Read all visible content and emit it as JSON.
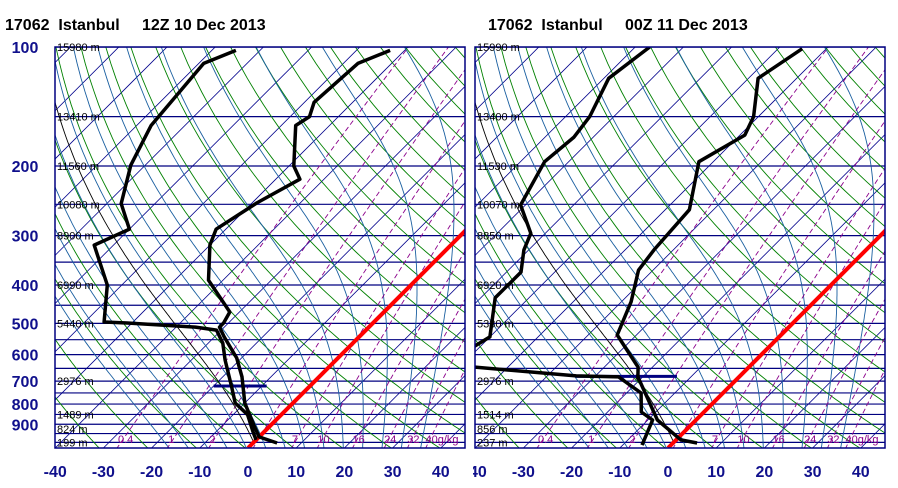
{
  "chart_data": [
    {
      "type": "line",
      "subtype": "skew-T log-P diagram",
      "title": "17062  Istanbul     12Z 10 Dec 2013",
      "station": "17062",
      "ylabel": "Pressure (hPa)",
      "xlabel": "Temperature (°C)",
      "pressure_ticks": [
        "100",
        "200",
        "300",
        "400",
        "500",
        "600",
        "700",
        "800",
        "900"
      ],
      "temperature_ticks": [
        "-40",
        "-30",
        "-20",
        "-10",
        "0",
        "10",
        "20",
        "30",
        "40"
      ],
      "xlim": [
        -40,
        45
      ],
      "ylim": [
        1033,
        100
      ],
      "heights": [
        {
          "p": 100,
          "label": "15980 m"
        },
        {
          "p": 150,
          "label": "13410 m"
        },
        {
          "p": 200,
          "label": "11560 m"
        },
        {
          "p": 250,
          "label": "10080 m"
        },
        {
          "p": 300,
          "label": "8900 m"
        },
        {
          "p": 400,
          "label": "6990 m"
        },
        {
          "p": 500,
          "label": "5440 m"
        },
        {
          "p": 700,
          "label": "2976 m"
        },
        {
          "p": 850,
          "label": "1489 m"
        },
        {
          "p": 925,
          "label": "824 m"
        },
        {
          "p": 1000,
          "label": "199 m"
        }
      ],
      "mixing_ratio_labels": [
        {
          "w": 0.4,
          "label": "0.4"
        },
        {
          "w": 1,
          "label": "1"
        },
        {
          "w": 2,
          "label": "2"
        },
        {
          "w": 7,
          "label": "7"
        },
        {
          "w": 10,
          "label": "10"
        },
        {
          "w": 16,
          "label": "16"
        },
        {
          "w": 24,
          "label": "24"
        },
        {
          "w": 32,
          "label": "32"
        },
        {
          "w": 40,
          "label": "40g/kg"
        }
      ],
      "series": [
        {
          "name": "temperature",
          "color": "#000000",
          "points": [
            [
              102,
              -53
            ],
            [
              110,
              -57
            ],
            [
              138,
              -58
            ],
            [
              150,
              -56
            ],
            [
              158,
              -57
            ],
            [
              200,
              -49
            ],
            [
              216,
              -45
            ],
            [
              248,
              -49
            ],
            [
              289,
              -52
            ],
            [
              317,
              -50
            ],
            [
              389,
              -43
            ],
            [
              468,
              -32
            ],
            [
              499,
              -31
            ],
            [
              511,
              -31
            ],
            [
              541,
              -28
            ],
            [
              612,
              -21
            ],
            [
              683,
              -16
            ],
            [
              795,
              -10
            ],
            [
              914,
              -3
            ],
            [
              969,
              0
            ],
            [
              1004,
              5
            ]
          ]
        },
        {
          "name": "dewpoint",
          "color": "#000000",
          "points": [
            [
              102,
              -85
            ],
            [
              110,
              -89
            ],
            [
              158,
              -87
            ],
            [
              199,
              -83
            ],
            [
              249,
              -77
            ],
            [
              289,
              -70
            ],
            [
              317,
              -74
            ],
            [
              400,
              -63
            ],
            [
              496,
              -56
            ],
            [
              499,
              -51
            ],
            [
              511,
              -36
            ],
            [
              520,
              -31
            ],
            [
              561,
              -27
            ],
            [
              619,
              -23
            ],
            [
              725,
              -16
            ],
            [
              795,
              -12
            ],
            [
              851,
              -7
            ],
            [
              947,
              -2
            ],
            [
              986,
              0
            ]
          ]
        }
      ],
      "marker_segment": {
        "p": 720,
        "t_from": -20,
        "t_to": -9,
        "color": "#000080"
      },
      "highlight_isotherm": {
        "t": 0,
        "color": "#ff0000"
      }
    },
    {
      "type": "line",
      "subtype": "skew-T log-P diagram",
      "title": "17062  Istanbul     00Z 11 Dec 2013",
      "station": "17062",
      "ylabel": "Pressure (hPa)",
      "xlabel": "Temperature (°C)",
      "pressure_ticks": [],
      "temperature_ticks": [
        "-40",
        "-30",
        "-20",
        "-10",
        "0",
        "10",
        "20",
        "30",
        "40"
      ],
      "xlim": [
        -40,
        45
      ],
      "ylim": [
        1033,
        100
      ],
      "heights": [
        {
          "p": 100,
          "label": "15990 m"
        },
        {
          "p": 150,
          "label": "13400 m"
        },
        {
          "p": 200,
          "label": "11530 m"
        },
        {
          "p": 250,
          "label": "10070 m"
        },
        {
          "p": 300,
          "label": "8850 m"
        },
        {
          "p": 400,
          "label": "6920 m"
        },
        {
          "p": 500,
          "label": "5330 m"
        },
        {
          "p": 700,
          "label": "2976 m"
        },
        {
          "p": 850,
          "label": "1514 m"
        },
        {
          "p": 925,
          "label": "856 m"
        },
        {
          "p": 1000,
          "label": "237 m"
        }
      ],
      "mixing_ratio_labels": [
        {
          "w": 0.4,
          "label": "0.4"
        },
        {
          "w": 1,
          "label": "1"
        },
        {
          "w": 2,
          "label": "2"
        },
        {
          "w": 7,
          "label": "7"
        },
        {
          "w": 10,
          "label": "10"
        },
        {
          "w": 16,
          "label": "16"
        },
        {
          "w": 24,
          "label": "24"
        },
        {
          "w": 32,
          "label": "32"
        },
        {
          "w": 40,
          "label": "40g/kg"
        }
      ],
      "series": [
        {
          "name": "temperature",
          "color": "#000000",
          "points": [
            [
              101,
              -55
            ],
            [
              120,
              -58
            ],
            [
              150,
              -51
            ],
            [
              167,
              -49
            ],
            [
              195,
              -53
            ],
            [
              258,
              -45
            ],
            [
              326,
              -44
            ],
            [
              367,
              -43
            ],
            [
              441,
              -38
            ],
            [
              535,
              -34
            ],
            [
              645,
              -23
            ],
            [
              683,
              -21
            ],
            [
              878,
              -8
            ],
            [
              986,
              1
            ],
            [
              1004,
              5
            ]
          ]
        },
        {
          "name": "dewpoint",
          "color": "#000000",
          "points": [
            [
              100,
              -87
            ],
            [
              120,
              -89
            ],
            [
              150,
              -85
            ],
            [
              169,
              -84
            ],
            [
              195,
              -85
            ],
            [
              251,
              -81
            ],
            [
              296,
              -73
            ],
            [
              326,
              -71
            ],
            [
              371,
              -67
            ],
            [
              431,
              -67
            ],
            [
              541,
              -60
            ],
            [
              590,
              -62
            ],
            [
              620,
              -68
            ],
            [
              645,
              -57
            ],
            [
              679,
              -34
            ],
            [
              683,
              -25
            ],
            [
              750,
              -17
            ],
            [
              838,
              -13
            ],
            [
              878,
              -9
            ],
            [
              1016,
              -6
            ]
          ]
        }
      ],
      "marker_segment": {
        "p": 681,
        "t_from": -34,
        "t_to": -13,
        "color": "#000080"
      },
      "highlight_isotherm": {
        "t": 0,
        "color": "#ff0000"
      }
    }
  ]
}
